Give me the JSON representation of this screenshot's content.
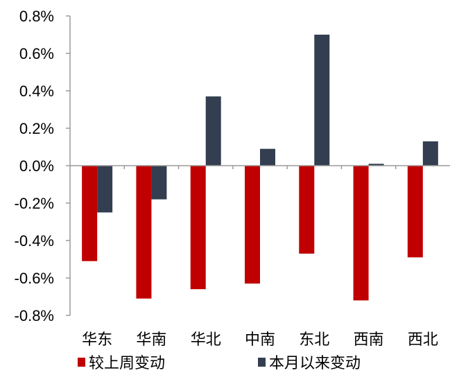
{
  "chart_data": {
    "type": "bar",
    "categories": [
      "华东",
      "华南",
      "华北",
      "中南",
      "东北",
      "西南",
      "西北"
    ],
    "series": [
      {
        "name": "较上周变动",
        "color": "#c00000",
        "values": [
          -0.51,
          -0.71,
          -0.66,
          -0.63,
          -0.47,
          -0.72,
          -0.49
        ]
      },
      {
        "name": "本月以来变动",
        "color": "#333f50",
        "values": [
          -0.25,
          -0.18,
          0.37,
          0.09,
          0.7,
          0.01,
          0.13
        ]
      }
    ],
    "y_ticks": [
      0.8,
      0.6,
      0.4,
      0.2,
      0.0,
      -0.2,
      -0.4,
      -0.6,
      -0.8
    ],
    "y_tick_labels": [
      "0.8%",
      "0.6%",
      "0.4%",
      "0.2%",
      "0.0%",
      "-0.2%",
      "-0.4%",
      "-0.6%",
      "-0.8%"
    ],
    "ylim": [
      -0.8,
      0.8
    ],
    "unit": "%",
    "grid": false,
    "legend_position": "bottom"
  }
}
